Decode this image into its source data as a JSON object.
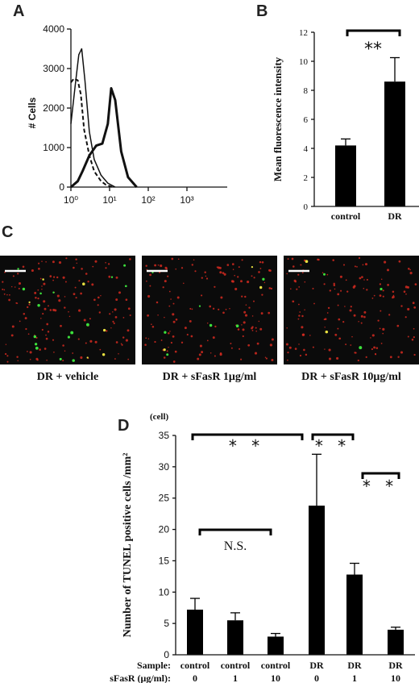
{
  "chart_data": [
    {
      "panel": "A",
      "type": "line",
      "ylabel": "# Cells",
      "xscale": "log",
      "xlim": [
        1,
        10000
      ],
      "ylim": [
        0,
        4000
      ],
      "yticks": [
        "0",
        "1000",
        "2000",
        "3000",
        "4000"
      ],
      "xticks": [
        "10⁰",
        "10¹",
        "10²",
        "10³"
      ],
      "series": [
        {
          "style": "dashed",
          "x": [
            1,
            1.2,
            1.5,
            1.8,
            2.2,
            3,
            4,
            6,
            8,
            12
          ],
          "y": [
            2650,
            2750,
            2700,
            2350,
            1450,
            800,
            400,
            150,
            60,
            0
          ]
        },
        {
          "style": "thin",
          "x": [
            1,
            1.3,
            1.6,
            1.9,
            2.3,
            3,
            4,
            6,
            9,
            14
          ],
          "y": [
            1600,
            2600,
            3350,
            3500,
            2700,
            1400,
            700,
            300,
            100,
            0
          ]
        },
        {
          "style": "thick",
          "x": [
            1,
            1.5,
            2,
            3,
            4.5,
            6.5,
            9,
            11,
            14,
            20,
            30,
            50
          ],
          "y": [
            0,
            150,
            400,
            800,
            1050,
            1100,
            1600,
            2500,
            2200,
            900,
            250,
            0
          ]
        }
      ]
    },
    {
      "panel": "B",
      "type": "bar",
      "ylabel": "Mean fluorescence intensity",
      "categories": [
        "control",
        "DR"
      ],
      "values": [
        4.2,
        8.6
      ],
      "errors": [
        0.45,
        1.65
      ],
      "ylim": [
        0,
        12
      ],
      "yticks": [
        "0",
        "2",
        "4",
        "6",
        "8",
        "10",
        "12"
      ],
      "significance": [
        "**"
      ]
    },
    {
      "panel": "D",
      "type": "bar",
      "ylabel": "Number of TUNEL positive cells /mm²",
      "unit_label": "(cell)",
      "categories": [
        "control 0",
        "control 1",
        "control 10",
        "DR 0",
        "DR 1",
        "DR 10"
      ],
      "values": [
        7.2,
        5.5,
        2.9,
        23.8,
        12.8,
        4.0
      ],
      "errors": [
        1.8,
        1.2,
        0.5,
        8.2,
        1.8,
        0.4
      ],
      "ylim": [
        0,
        35
      ],
      "yticks": [
        "0",
        "5",
        "10",
        "15",
        "20",
        "25",
        "30",
        "35"
      ],
      "sample_label": "Sample:",
      "samples": [
        "control",
        "control",
        "control",
        "DR",
        "DR",
        "DR"
      ],
      "sfasr_label": "sFasR (μg/ml):",
      "sfasr": [
        "0",
        "1",
        "10",
        "0",
        "1",
        "10"
      ],
      "significance": [
        "* *",
        "* *",
        "* *",
        "N.S."
      ]
    }
  ],
  "panels": {
    "a": "A",
    "b": "B",
    "c": "C",
    "d": "D"
  },
  "panel_c_captions": [
    "DR + vehicle",
    "DR + sFasR 1μg/ml",
    "DR + sFasR 10μg/ml"
  ],
  "colors": {
    "bar": "#000000",
    "image_bg": "#0b0b0b",
    "red_dot": "#d42a20",
    "green_dot": "#3ce03c",
    "yellow_dot": "#e8e040"
  }
}
